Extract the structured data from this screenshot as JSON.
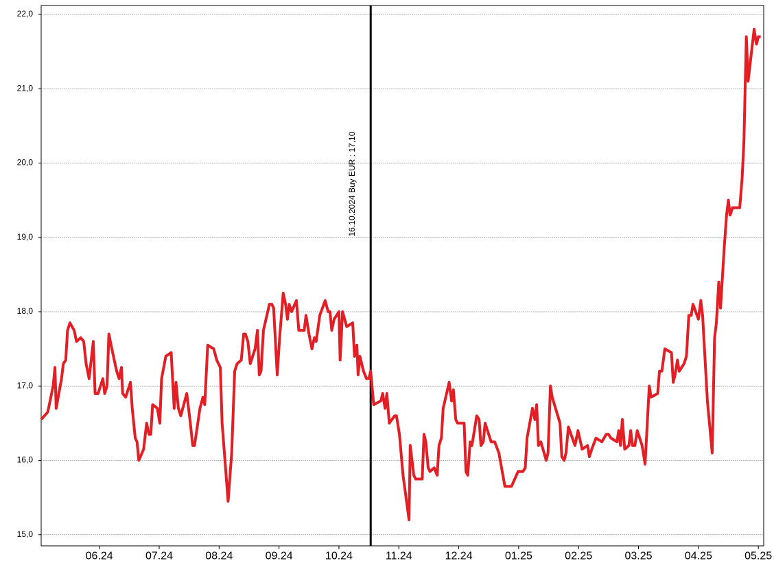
{
  "chart_data": {
    "type": "line",
    "color": "#e31e24",
    "grid": true,
    "xlim": [
      5.03,
      17.09
    ],
    "ylim": [
      14.85,
      22.12
    ],
    "xticks": [
      {
        "value": 6,
        "label": "06.24"
      },
      {
        "value": 7,
        "label": "07.24"
      },
      {
        "value": 8,
        "label": "08.24"
      },
      {
        "value": 9,
        "label": "09.24"
      },
      {
        "value": 10,
        "label": "10.24"
      },
      {
        "value": 11,
        "label": "11.24"
      },
      {
        "value": 12,
        "label": "12.24"
      },
      {
        "value": 13,
        "label": "01.25"
      },
      {
        "value": 14,
        "label": "02.25"
      },
      {
        "value": 15,
        "label": "03.25"
      },
      {
        "value": 16,
        "label": "04.25"
      },
      {
        "value": 17,
        "label": "05.25"
      }
    ],
    "yticks": [
      {
        "value": 15,
        "label": "15,0"
      },
      {
        "value": 16,
        "label": "16,0"
      },
      {
        "value": 17,
        "label": "17,0"
      },
      {
        "value": 18,
        "label": "18,0"
      },
      {
        "value": 19,
        "label": "19,0"
      },
      {
        "value": 20,
        "label": "20,0"
      },
      {
        "value": 21,
        "label": "21,0"
      },
      {
        "value": 22,
        "label": "22,0"
      }
    ],
    "annotations": [
      {
        "text": "16.10.2024 Buy EUR : 17,10",
        "x": 10.53
      }
    ],
    "x": [
      5.03,
      5.14,
      5.23,
      5.26,
      5.28,
      5.37,
      5.4,
      5.44,
      5.47,
      5.51,
      5.58,
      5.62,
      5.69,
      5.74,
      5.78,
      5.83,
      5.9,
      5.93,
      5.98,
      6.06,
      6.09,
      6.13,
      6.16,
      6.21,
      6.29,
      6.33,
      6.37,
      6.39,
      6.44,
      6.52,
      6.55,
      6.6,
      6.63,
      6.66,
      6.74,
      6.79,
      6.83,
      6.86,
      6.89,
      6.97,
      7.01,
      7.04,
      7.11,
      7.2,
      7.25,
      7.28,
      7.32,
      7.36,
      7.46,
      7.52,
      7.56,
      7.59,
      7.68,
      7.73,
      7.76,
      7.81,
      7.91,
      7.96,
      8.02,
      8.05,
      8.15,
      8.21,
      8.26,
      8.3,
      8.37,
      8.41,
      8.44,
      8.48,
      8.52,
      8.6,
      8.64,
      8.67,
      8.7,
      8.74,
      8.84,
      8.88,
      8.91,
      8.97,
      9.01,
      9.07,
      9.11,
      9.14,
      9.17,
      9.21,
      9.29,
      9.33,
      9.42,
      9.45,
      9.5,
      9.55,
      9.59,
      9.62,
      9.68,
      9.77,
      9.82,
      9.85,
      9.88,
      9.92,
      10.0,
      10.02,
      10.06,
      10.13,
      10.23,
      10.26,
      10.3,
      10.32,
      10.35,
      10.41,
      10.46,
      10.5,
      10.53,
      10.58,
      10.7,
      10.73,
      10.77,
      10.8,
      10.84,
      10.93,
      10.96,
      11.01,
      11.07,
      11.17,
      11.19,
      11.25,
      11.28,
      11.39,
      11.42,
      11.45,
      11.49,
      11.52,
      11.59,
      11.64,
      11.67,
      11.71,
      11.74,
      11.84,
      11.88,
      11.91,
      11.95,
      11.98,
      12.09,
      12.12,
      12.15,
      12.19,
      12.22,
      12.3,
      12.34,
      12.37,
      12.41,
      12.44,
      12.54,
      12.6,
      12.67,
      12.77,
      12.88,
      12.99,
      13.07,
      13.11,
      13.14,
      13.23,
      13.27,
      13.3,
      13.33,
      13.37,
      13.46,
      13.49,
      13.53,
      13.56,
      13.69,
      13.72,
      13.76,
      13.79,
      13.83,
      13.94,
      13.99,
      14.06,
      14.15,
      14.18,
      14.22,
      14.29,
      14.39,
      14.46,
      14.5,
      14.54,
      14.64,
      14.67,
      14.7,
      14.73,
      14.77,
      14.84,
      14.87,
      14.9,
      14.94,
      14.98,
      15.06,
      15.11,
      15.18,
      15.21,
      15.32,
      15.35,
      15.39,
      15.44,
      15.55,
      15.58,
      15.61,
      15.65,
      15.68,
      15.76,
      15.8,
      15.84,
      15.88,
      15.91,
      16.0,
      16.04,
      16.07,
      16.15,
      16.23,
      16.27,
      16.3,
      16.34,
      16.37,
      16.43,
      16.47,
      16.5,
      16.53,
      16.57,
      16.69,
      16.73,
      16.76,
      16.8,
      16.83,
      16.88,
      16.93,
      16.97,
      17.0,
      17.04
    ],
    "values": [
      16.55,
      16.65,
      17.0,
      17.25,
      16.7,
      17.1,
      17.3,
      17.35,
      17.75,
      17.85,
      17.75,
      17.6,
      17.65,
      17.6,
      17.3,
      17.1,
      17.6,
      16.9,
      16.9,
      17.1,
      16.9,
      17.0,
      17.7,
      17.5,
      17.2,
      17.1,
      17.25,
      16.9,
      16.85,
      17.05,
      16.7,
      16.3,
      16.25,
      16.0,
      16.15,
      16.5,
      16.35,
      16.35,
      16.75,
      16.7,
      16.5,
      17.1,
      17.4,
      17.45,
      16.7,
      17.05,
      16.7,
      16.6,
      16.9,
      16.5,
      16.2,
      16.2,
      16.7,
      16.85,
      16.75,
      17.55,
      17.5,
      17.35,
      17.25,
      16.5,
      15.45,
      16.1,
      17.2,
      17.3,
      17.35,
      17.7,
      17.7,
      17.6,
      17.3,
      17.5,
      17.75,
      17.15,
      17.2,
      17.75,
      18.1,
      18.1,
      18.05,
      17.15,
      17.65,
      18.25,
      18.1,
      17.9,
      18.1,
      18.0,
      18.15,
      17.75,
      17.75,
      17.95,
      17.7,
      17.5,
      17.65,
      17.6,
      17.95,
      18.15,
      18.0,
      18.0,
      17.75,
      17.9,
      18.0,
      17.35,
      18.0,
      17.8,
      17.85,
      17.4,
      17.55,
      17.15,
      17.4,
      17.2,
      17.1,
      17.1,
      17.2,
      16.75,
      16.8,
      16.9,
      16.7,
      16.9,
      16.5,
      16.6,
      16.6,
      16.35,
      15.8,
      15.2,
      16.2,
      15.8,
      15.75,
      15.75,
      16.35,
      16.25,
      15.9,
      15.85,
      15.9,
      15.8,
      16.2,
      16.3,
      16.7,
      17.05,
      16.8,
      16.95,
      16.55,
      16.5,
      16.5,
      15.85,
      15.8,
      16.25,
      16.2,
      16.6,
      16.55,
      16.2,
      16.25,
      16.5,
      16.25,
      16.25,
      16.1,
      15.65,
      15.65,
      15.85,
      15.85,
      15.9,
      16.3,
      16.7,
      16.55,
      16.75,
      16.2,
      16.25,
      16.0,
      16.1,
      17.0,
      16.85,
      16.5,
      16.05,
      16.0,
      16.1,
      16.45,
      16.2,
      16.4,
      16.15,
      16.2,
      16.05,
      16.15,
      16.3,
      16.25,
      16.35,
      16.35,
      16.3,
      16.25,
      16.4,
      16.2,
      16.55,
      16.15,
      16.2,
      16.4,
      16.2,
      16.2,
      16.4,
      16.2,
      15.95,
      17.0,
      16.85,
      16.9,
      17.2,
      17.2,
      17.5,
      17.45,
      17.05,
      17.15,
      17.35,
      17.2,
      17.3,
      17.4,
      17.95,
      17.95,
      18.1,
      17.9,
      18.15,
      17.95,
      16.8,
      16.1,
      17.65,
      17.85,
      18.4,
      18.05,
      18.85,
      19.3,
      19.5,
      19.3,
      19.4,
      19.4,
      19.8,
      20.3,
      21.7,
      21.1,
      21.45,
      21.8,
      21.6,
      21.7,
      21.7
    ]
  }
}
